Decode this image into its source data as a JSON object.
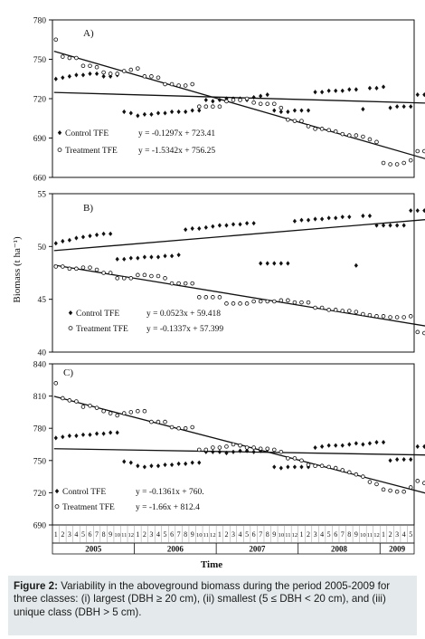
{
  "ylabel": "Biomass (t ha⁻¹)",
  "xlabel": "Time",
  "month_ticks": [
    "1",
    "2",
    "3",
    "4",
    "5",
    "6",
    "7",
    "8",
    "9",
    "10",
    "11",
    "12",
    "1",
    "2",
    "3",
    "4",
    "5",
    "6",
    "7",
    "8",
    "9",
    "10",
    "11",
    "12",
    "1",
    "2",
    "3",
    "4",
    "5",
    "6",
    "7",
    "8",
    "9",
    "10",
    "11",
    "12",
    "1",
    "2",
    "3",
    "4",
    "5",
    "6",
    "7",
    "8",
    "9",
    "10",
    "11",
    "12",
    "1",
    "2",
    "3",
    "4",
    "5"
  ],
  "years": [
    "2005",
    "2006",
    "2007",
    "2008",
    "2009"
  ],
  "caption": {
    "label": "Figure 2:",
    "text": "Variability in the aboveground biomass during the period 2005-2009 for three classes: (i) largest (DBH ≥ 20 cm), (ii) smallest (5 ≤ DBH < 20 cm), and (iii) unique class (DBH > 5 cm)."
  },
  "chart_data": [
    {
      "type": "scatter",
      "panel_label": "A)",
      "ylim": [
        660,
        780
      ],
      "yticks": [
        660,
        690,
        720,
        750,
        780
      ],
      "series": [
        {
          "name": "Control TFE",
          "marker": "filled-diamond",
          "values": [
            735,
            736,
            737,
            738,
            738,
            739,
            739,
            737,
            737,
            738,
            710,
            709,
            707,
            708,
            708,
            709,
            709,
            710,
            710,
            710,
            711,
            711,
            719,
            718,
            719,
            720,
            720,
            720,
            719,
            721,
            722,
            723,
            711,
            710,
            710,
            711,
            711,
            711,
            725,
            725,
            726,
            726,
            726,
            727,
            727,
            712,
            728,
            728,
            729,
            713,
            714,
            714,
            714,
            723,
            723,
            723
          ]
        },
        {
          "name": "Treatment TFE",
          "marker": "open-circle",
          "values": [
            765,
            752,
            751,
            751,
            745,
            745,
            744,
            740,
            739,
            739,
            741,
            742,
            743,
            737,
            737,
            736,
            731,
            731,
            730,
            730,
            731,
            714,
            714,
            714,
            714,
            718,
            719,
            719,
            720,
            717,
            716,
            716,
            716,
            713,
            704,
            703,
            703,
            699,
            697,
            697,
            696,
            695,
            693,
            692,
            692,
            691,
            689,
            687,
            671,
            670,
            670,
            671,
            673,
            680,
            680,
            680
          ]
        },
        {
          "name": "Control TFE fit",
          "kind": "line",
          "equation": "y = -0.1297x + 723.41",
          "slope": -0.1297,
          "intercept": 723.41
        },
        {
          "name": "Treatment TFE fit",
          "kind": "line",
          "equation": "y = -1.5342x + 756.25",
          "slope": -1.5342,
          "intercept": 756.25
        }
      ]
    },
    {
      "type": "scatter",
      "panel_label": "B)",
      "ylim": [
        40,
        55
      ],
      "yticks": [
        40,
        45,
        50,
        55
      ],
      "series": [
        {
          "name": "Control TFE",
          "marker": "filled-diamond",
          "values": [
            50.3,
            50.5,
            50.6,
            50.8,
            50.9,
            51.0,
            51.1,
            51.2,
            51.2,
            48.8,
            48.8,
            48.9,
            48.9,
            49.0,
            49.0,
            49.0,
            49.1,
            49.1,
            49.2,
            51.6,
            51.7,
            51.7,
            51.8,
            51.9,
            52.0,
            52.0,
            52.1,
            52.1,
            52.2,
            52.2,
            48.4,
            48.4,
            48.4,
            48.4,
            48.4,
            52.4,
            52.5,
            52.5,
            52.6,
            52.6,
            52.7,
            52.7,
            52.8,
            52.8,
            48.2,
            52.9,
            52.9,
            52.0,
            52.0,
            52.0,
            52.0,
            52.0,
            53.4,
            53.4,
            53.4,
            53.5
          ]
        },
        {
          "name": "Treatment TFE",
          "marker": "open-circle",
          "values": [
            48.1,
            48.1,
            47.9,
            47.9,
            48.0,
            48.0,
            47.8,
            47.5,
            47.5,
            47.0,
            47.0,
            47.0,
            47.3,
            47.3,
            47.2,
            47.2,
            47.0,
            46.5,
            46.5,
            46.5,
            46.5,
            45.2,
            45.2,
            45.2,
            45.2,
            44.6,
            44.6,
            44.6,
            44.6,
            44.8,
            44.8,
            44.8,
            44.8,
            44.9,
            44.9,
            44.7,
            44.7,
            44.7,
            44.2,
            44.2,
            44.0,
            44.0,
            43.9,
            43.9,
            43.8,
            43.6,
            43.5,
            43.4,
            43.4,
            43.3,
            43.3,
            43.3,
            43.4,
            41.9,
            41.8,
            41.7
          ]
        },
        {
          "name": "Control TFE fit",
          "kind": "line",
          "equation": "y = 0.0523x + 59.418"
        },
        {
          "name": "Treatment TFE fit",
          "kind": "line",
          "equation": "y = -0.1337x + 57.399"
        }
      ]
    },
    {
      "type": "scatter",
      "panel_label": "C)",
      "ylim": [
        690,
        840
      ],
      "yticks": [
        690,
        720,
        750,
        780,
        810,
        840
      ],
      "series": [
        {
          "name": "Control TFE",
          "marker": "filled-diamond",
          "values": [
            771,
            772,
            773,
            773,
            774,
            774,
            775,
            775,
            776,
            776,
            749,
            748,
            745,
            744,
            745,
            745,
            746,
            746,
            747,
            747,
            748,
            748,
            758,
            758,
            758,
            757,
            758,
            759,
            759,
            758,
            759,
            760,
            744,
            743,
            744,
            744,
            744,
            744,
            762,
            763,
            764,
            764,
            764,
            765,
            766,
            765,
            766,
            767,
            767,
            750,
            751,
            751,
            751,
            763,
            763,
            763
          ]
        },
        {
          "name": "Treatment TFE",
          "marker": "open-circle",
          "values": [
            822,
            808,
            806,
            805,
            800,
            801,
            799,
            796,
            794,
            792,
            794,
            795,
            796,
            796,
            786,
            786,
            786,
            781,
            780,
            780,
            781,
            760,
            760,
            762,
            762,
            763,
            765,
            764,
            762,
            762,
            761,
            761,
            760,
            758,
            752,
            752,
            750,
            746,
            745,
            745,
            744,
            743,
            741,
            739,
            737,
            735,
            730,
            728,
            723,
            722,
            721,
            721,
            725,
            731,
            729,
            729
          ]
        },
        {
          "name": "Control TFE fit",
          "kind": "line",
          "equation": "y = -0.1361x + 760."
        },
        {
          "name": "Treatment TFE fit",
          "kind": "line",
          "equation": "y = -1.66x + 812.4"
        }
      ]
    }
  ]
}
